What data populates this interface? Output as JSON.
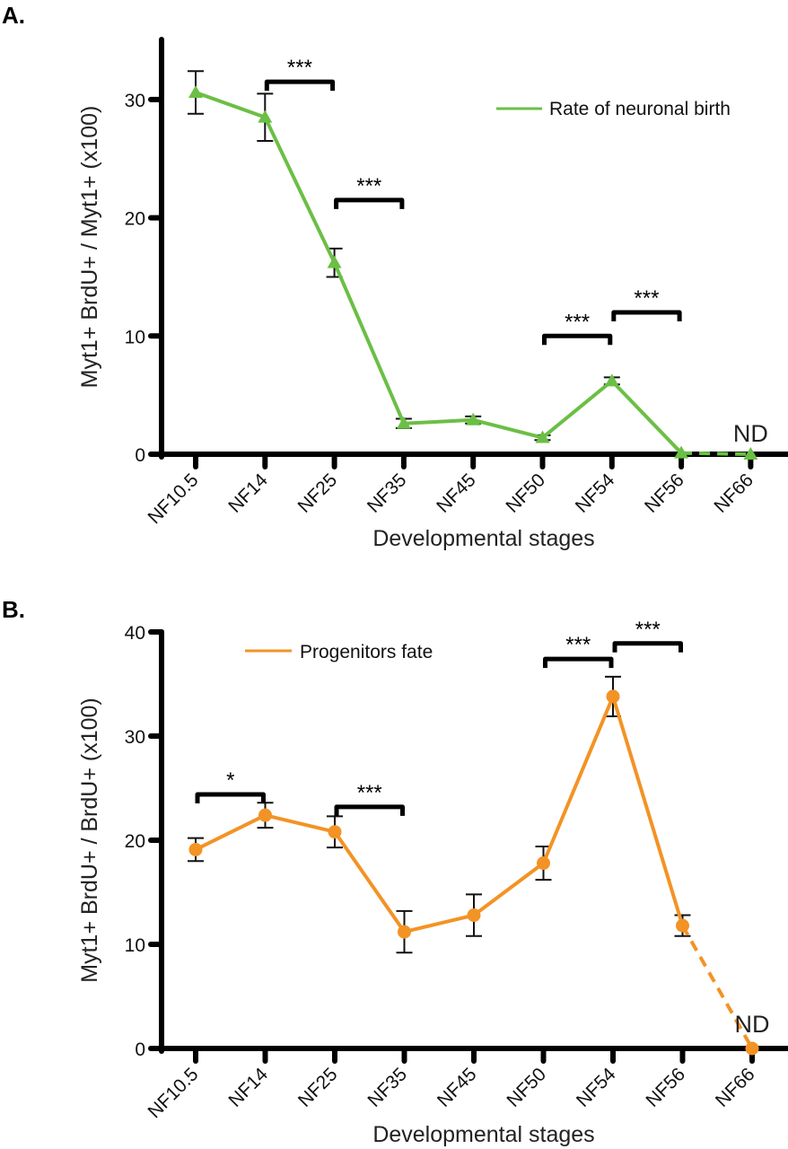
{
  "chart_data": [
    {
      "panel": "A.",
      "type": "line",
      "title": "",
      "xlabel": "Developmental stages",
      "ylabel": "Myt1+ BrdU+ / Myt1+ (x100)",
      "categories": [
        "NF10.5",
        "NF14",
        "NF25",
        "NF35",
        "NF45",
        "NF50",
        "NF54",
        "NF56",
        "NF66"
      ],
      "ylim": [
        0,
        35
      ],
      "yticks": [
        0,
        10,
        20,
        30
      ],
      "grid": false,
      "legend": "top-right",
      "marker": "triangle",
      "series": [
        {
          "name": "Rate of neuronal birth",
          "color": "#6bbf45",
          "values": [
            30.6,
            28.5,
            16.2,
            2.6,
            2.9,
            1.4,
            6.2,
            0.1,
            0
          ],
          "errors": [
            1.8,
            2.0,
            1.2,
            0.4,
            0.3,
            0.2,
            0.3,
            0,
            0
          ],
          "dashed_segment_from_index": 7
        }
      ],
      "significance": [
        {
          "from": "NF14",
          "to": "NF25",
          "label": "***",
          "level": 31.5
        },
        {
          "from": "NF25",
          "to": "NF35",
          "label": "***",
          "level": 21.5
        },
        {
          "from": "NF50",
          "to": "NF54",
          "label": "***",
          "level": 10.0
        },
        {
          "from": "NF54",
          "to": "NF56",
          "label": "***",
          "level": 12.0
        }
      ],
      "annotations": [
        {
          "at": "NF66",
          "text": "ND"
        }
      ]
    },
    {
      "panel": "B.",
      "type": "line",
      "title": "",
      "xlabel": "Developmental stages",
      "ylabel": "Myt1+ BrdU+ / BrdU+ (x100)",
      "categories": [
        "NF10.5",
        "NF14",
        "NF25",
        "NF35",
        "NF45",
        "NF50",
        "NF54",
        "NF56",
        "NF66"
      ],
      "ylim": [
        0,
        40
      ],
      "yticks": [
        0,
        10,
        20,
        30,
        40
      ],
      "grid": false,
      "legend": "top-left",
      "marker": "circle",
      "series": [
        {
          "name": "Progenitors fate",
          "color": "#f39325",
          "values": [
            19.1,
            22.4,
            20.8,
            11.2,
            12.8,
            17.8,
            33.8,
            11.8,
            0
          ],
          "errors": [
            1.1,
            1.2,
            1.5,
            2.0,
            2.0,
            1.6,
            1.9,
            1.0,
            0
          ],
          "dashed_segment_from_index": 7
        }
      ],
      "significance": [
        {
          "from": "NF10.5",
          "to": "NF14",
          "label": "*",
          "level": 24.4
        },
        {
          "from": "NF25",
          "to": "NF35",
          "label": "***",
          "level": 23.2
        },
        {
          "from": "NF50",
          "to": "NF54",
          "label": "***",
          "level": 37.4
        },
        {
          "from": "NF54",
          "to": "NF56",
          "label": "***",
          "level": 38.9
        }
      ],
      "annotations": [
        {
          "at": "NF66",
          "text": "ND"
        }
      ]
    }
  ]
}
